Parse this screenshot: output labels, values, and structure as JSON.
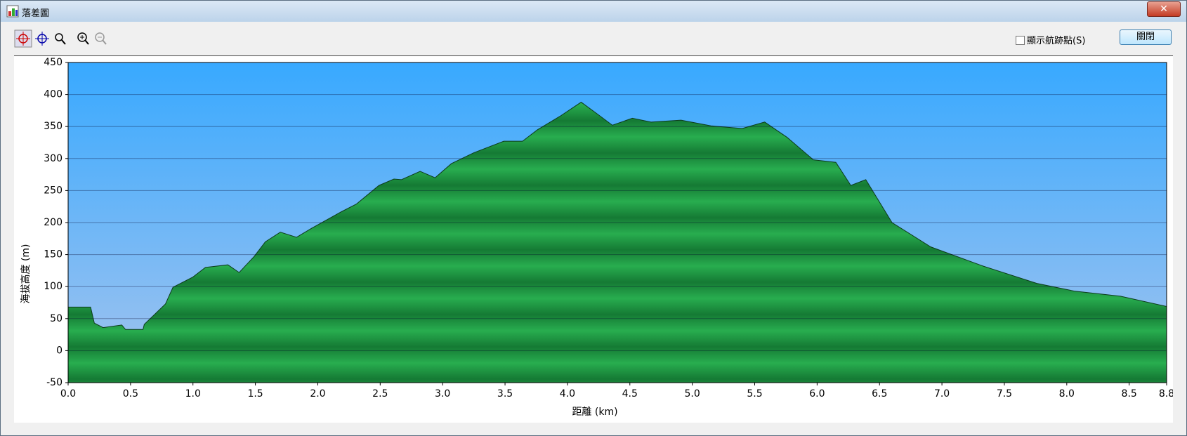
{
  "window": {
    "title": "落差圖",
    "checkbox_label": "顯示航跡點(S)",
    "close_button": "關閉"
  },
  "chart_data": {
    "type": "area",
    "y_label": "海拔高度 (m)",
    "x_label": "距離 (km)",
    "x": [
      0,
      0.18,
      0.21,
      0.28,
      0.43,
      0.46,
      0.6,
      0.61,
      0.78,
      0.84,
      1.0,
      1.1,
      1.28,
      1.37,
      1.49,
      1.58,
      1.7,
      1.83,
      1.95,
      2.19,
      2.31,
      2.49,
      2.61,
      2.67,
      2.82,
      2.94,
      3.07,
      3.25,
      3.49,
      3.64,
      3.76,
      3.94,
      4.11,
      4.25,
      4.36,
      4.52,
      4.67,
      4.91,
      5.15,
      5.4,
      5.58,
      5.76,
      5.97,
      6.15,
      6.27,
      6.39,
      6.6,
      6.91,
      7.33,
      7.76,
      8.06,
      8.43,
      8.8
    ],
    "values": [
      68,
      68,
      43,
      36,
      40,
      33,
      33,
      41,
      73,
      99,
      115,
      130,
      134,
      122,
      147,
      170,
      185,
      177,
      191,
      217,
      229,
      258,
      268,
      267,
      280,
      270,
      292,
      309,
      327,
      327,
      345,
      366,
      388,
      368,
      352,
      363,
      357,
      360,
      351,
      347,
      357,
      333,
      298,
      294,
      258,
      267,
      200,
      162,
      132,
      105,
      93,
      85,
      69
    ],
    "color": "#22a046",
    "xlim": [
      0,
      8.8
    ],
    "xticks": [
      {
        "value": 0,
        "label": "0.0"
      },
      0.5,
      {
        "value": 1,
        "label": "1.0"
      },
      1.5,
      {
        "value": 2,
        "label": "2.0"
      },
      2.5,
      {
        "value": 3,
        "label": "3.0"
      },
      3.5,
      {
        "value": 4,
        "label": "4.0"
      },
      4.5,
      {
        "value": 5,
        "label": "5.0"
      },
      5.5,
      {
        "value": 6,
        "label": "6.0"
      },
      6.5,
      {
        "value": 7,
        "label": "7.0"
      },
      7.5,
      {
        "value": 8,
        "label": "8.0"
      },
      8.5,
      8.8
    ],
    "ylim": [
      -50,
      450
    ],
    "yticks": [
      -50,
      0,
      50,
      100,
      150,
      200,
      250,
      300,
      350,
      400,
      450
    ],
    "grid": true
  }
}
